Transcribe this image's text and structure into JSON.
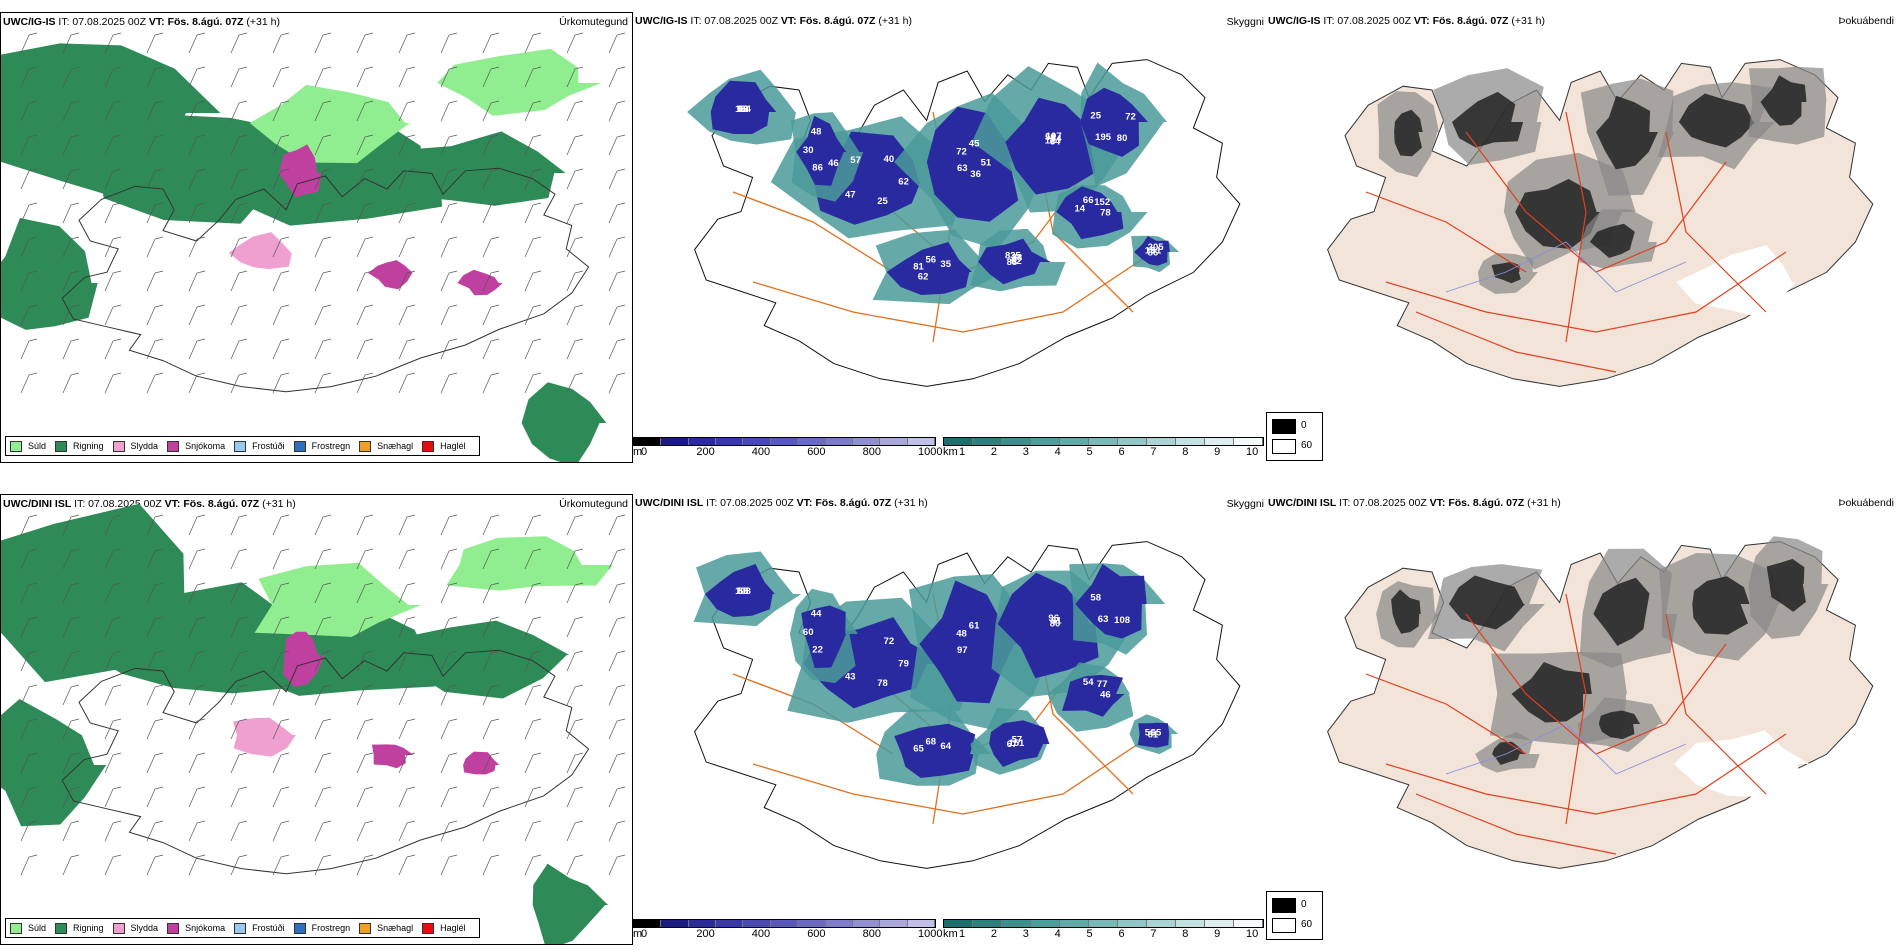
{
  "rows": [
    {
      "model": "UWC/IG-IS",
      "it": "IT: 07.08.2025 00Z",
      "vt_label": "VT:",
      "vt": "Fös. 8.ágú. 07Z",
      "lead": "(+31 h)",
      "panels": [
        "Úrkomutegund",
        "Skyggni",
        "Þokuábendi"
      ],
      "cloud_labels": [
        "63",
        "47",
        "45",
        "64",
        "25",
        "35",
        "88",
        "48",
        "78",
        "19",
        "40",
        "25",
        "72",
        "64",
        "195",
        "56",
        "62",
        "30",
        "152",
        "86",
        "92",
        "62",
        "63",
        "107",
        "80",
        "81",
        "88",
        "86",
        "66",
        "51",
        "43",
        "40",
        "36",
        "56",
        "72",
        "62",
        "835",
        "46",
        "14",
        "205",
        "134",
        "57",
        "51",
        "12"
      ]
    },
    {
      "model": "UWC/DINI ISL",
      "it": "IT: 07.08.2025 00Z",
      "vt_label": "VT:",
      "vt": "Fös. 8.ágú. 07Z",
      "lead": "(+31 h)",
      "panels": [
        "Úrkomutegund",
        "Skyggni",
        "Þokuábendi"
      ],
      "cloud_labels": [
        "103",
        "43",
        "61",
        "80",
        "58",
        "64",
        "67",
        "44",
        "46",
        "56",
        "56",
        "78",
        "48",
        "61",
        "63",
        "68",
        "151",
        "60",
        "77",
        "61",
        "55",
        "79",
        "97",
        "96",
        "108",
        "65",
        "57",
        "22",
        "54",
        "65",
        "69",
        "72"
      ]
    }
  ],
  "precip_legend": [
    {
      "label": "Súld",
      "color": "#90ee90"
    },
    {
      "label": "Rigning",
      "color": "#2e8b57"
    },
    {
      "label": "Slydda",
      "color": "#f0a0d0"
    },
    {
      "label": "Snjókoma",
      "color": "#c040a0"
    },
    {
      "label": "Frostúði",
      "color": "#9ac8f0"
    },
    {
      "label": "Frostregn",
      "color": "#3070c0"
    },
    {
      "label": "Snæhagl",
      "color": "#f0a020"
    },
    {
      "label": "Haglél",
      "color": "#e01010"
    }
  ],
  "colorbar_m": {
    "unit": "m",
    "ticks": [
      "0",
      "200",
      "400",
      "600",
      "800",
      "1000"
    ],
    "colors": [
      "#000000",
      "#1a1a80",
      "#2a2a99",
      "#3838a8",
      "#4848b0",
      "#5858b8",
      "#6a6ac0",
      "#7c7cc8",
      "#9090d0",
      "#a8a8dc",
      "#c0c0e8"
    ]
  },
  "colorbar_km": {
    "unit": "km",
    "ticks": [
      "1",
      "2",
      "3",
      "4",
      "5",
      "6",
      "7",
      "8",
      "9",
      "10"
    ],
    "colors": [
      "#1e6e6e",
      "#2e7e7e",
      "#3e8e8e",
      "#4e9e9e",
      "#60aaaa",
      "#78b8b8",
      "#90c6c6",
      "#aad4d4",
      "#c2e2e2",
      "#dceeee",
      "#f4fafa"
    ]
  },
  "fog_legend": {
    "top": "0",
    "bottom": "60"
  },
  "colors": {
    "rain": "#2e8b57",
    "drizzle": "#90ee90",
    "snow": "#c040a0",
    "sleet": "#f0a0d0",
    "cloud": "#2a2aa0",
    "cloud_edge": "#4a9a9a",
    "road": "#e07020",
    "land_fog": "#f2e4d8"
  }
}
